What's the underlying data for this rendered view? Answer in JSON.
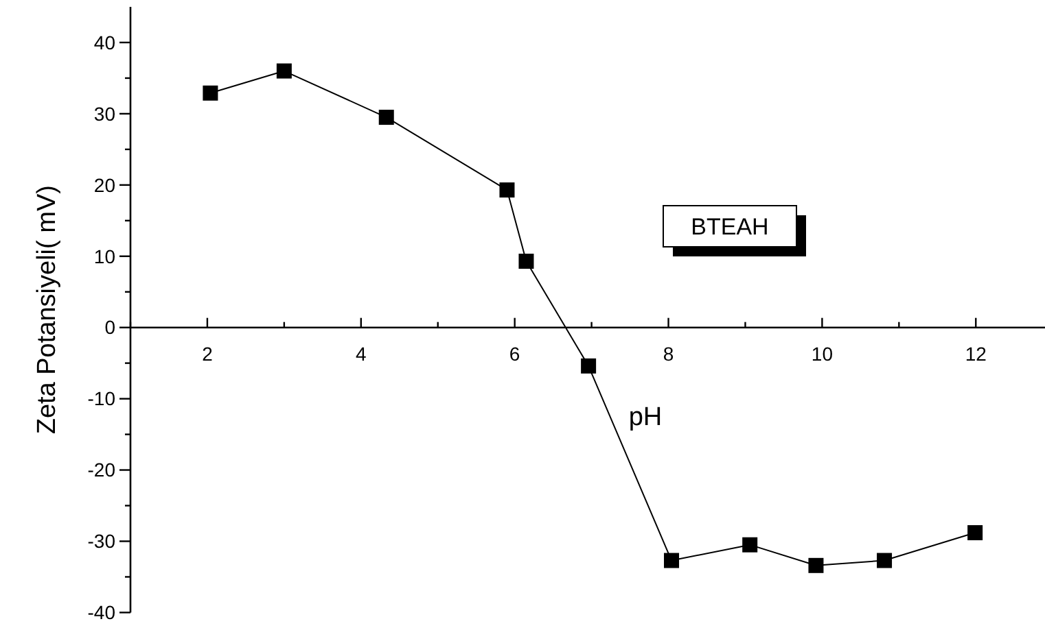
{
  "chart_data": {
    "type": "line",
    "xlabel": "pH",
    "ylabel": "Zeta Potansiyeli(  mV)",
    "annotations": [
      "BTEAH"
    ],
    "x": [
      2.04,
      3.0,
      4.33,
      5.9,
      6.15,
      6.96,
      8.04,
      9.06,
      9.92,
      10.81,
      11.99
    ],
    "series": [
      {
        "color": "#000000",
        "values": [
          32.9,
          36.0,
          29.5,
          19.3,
          9.3,
          -5.4,
          -32.7,
          -30.5,
          -33.4,
          -32.7,
          -28.8
        ]
      }
    ],
    "xlim": [
      1,
      12.9
    ],
    "ylim": [
      -40,
      45
    ],
    "xticks": [
      {
        "value": 1,
        "label": null
      },
      2,
      {
        "value": 3,
        "label": null
      },
      4,
      {
        "value": 5,
        "label": null
      },
      6,
      {
        "value": 7,
        "label": null
      },
      8,
      {
        "value": 9,
        "label": null
      },
      10,
      {
        "value": 11,
        "label": null
      },
      12
    ],
    "yticks": [
      -40,
      {
        "value": -35,
        "label": null
      },
      -30,
      {
        "value": -25,
        "label": null
      },
      -20,
      {
        "value": -15,
        "label": null
      },
      -10,
      {
        "value": -5,
        "label": null
      },
      0,
      {
        "value": 5,
        "label": null
      },
      10,
      {
        "value": 15,
        "label": null
      },
      20,
      {
        "value": 25,
        "label": null
      },
      30,
      {
        "value": 35,
        "label": null
      },
      40
    ],
    "marker": "square",
    "line_style": "solid",
    "grid": false
  }
}
